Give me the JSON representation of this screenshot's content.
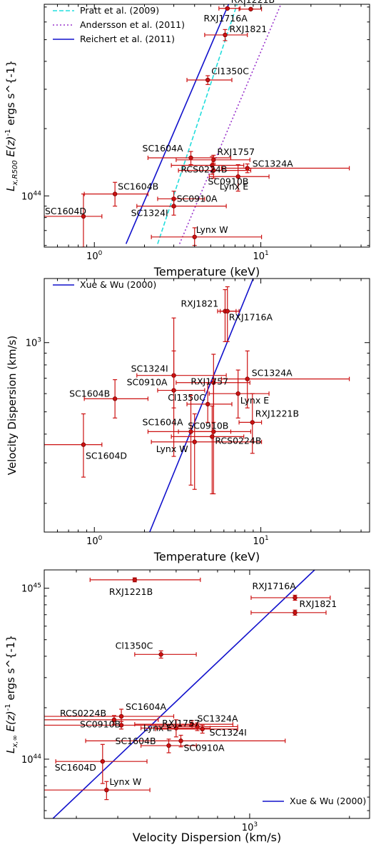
{
  "chart_data": [
    {
      "type": "scatter",
      "xscale": "log",
      "yscale": "log",
      "xlim": [
        0.5,
        45
      ],
      "ylim": [
        5.9e+43,
        7.2e+44
      ],
      "xlabel": "Temperature (keV)",
      "ylabel": "L_{x,R500} E(z)^{-1} ergs s^{-1}",
      "xticks": [
        {
          "v": 1,
          "label": "10^0"
        },
        {
          "v": 10,
          "label": "10^1"
        }
      ],
      "yticks": [
        {
          "v": 1e+44,
          "label": "10^44"
        }
      ],
      "legend": "top-left",
      "lines": [
        {
          "name": "Pratt et al. (2009)",
          "color": "#22dddd",
          "style": "dashed",
          "x": [
            2.4,
            7.2
          ],
          "y": [
            6.1e+43,
            7.2e+44
          ]
        },
        {
          "name": "Andersson et al. (2011)",
          "color": "#9933cc",
          "style": "dotted",
          "x": [
            3.25,
            13.2
          ],
          "y": [
            6.1e+43,
            7.2e+44
          ]
        },
        {
          "name": "Reichert et al. (2011)",
          "color": "#1111cc",
          "style": "solid",
          "x": [
            1.55,
            6.4
          ],
          "y": [
            6.1e+43,
            7.2e+44
          ]
        }
      ],
      "points": [
        {
          "label": "RXJ1221B",
          "x": 6.3,
          "y": 6.9e+44,
          "xerr": [
            5.6,
            7.5
          ],
          "yerr": [
            6.85e+44,
            6.95e+44
          ]
        },
        {
          "label": "RXJ1716A",
          "x": 8.7,
          "y": 6.85e+44,
          "xerr": [
            7.4,
            10.1
          ],
          "yerr": [
            6.8e+44,
            6.9e+44
          ]
        },
        {
          "label": "RXJ1821",
          "x": 6.1,
          "y": 5.25e+44,
          "xerr": [
            4.6,
            8.3
          ],
          "yerr": [
            4.95e+44,
            5.55e+44
          ]
        },
        {
          "label": "Cl1350C",
          "x": 4.8,
          "y": 3.3e+44,
          "xerr": [
            3.6,
            6.7
          ],
          "yerr": [
            3.15e+44,
            3.45e+44
          ]
        },
        {
          "label": "SC1604A",
          "x": 3.8,
          "y": 1.48e+44,
          "xerr": [
            2.1,
            6.6
          ],
          "yerr": [
            1.38e+44,
            1.58e+44
          ]
        },
        {
          "label": "RXJ1757",
          "x": 5.2,
          "y": 1.45e+44,
          "xerr": [
            3.1,
            8.6
          ],
          "yerr": [
            1.38e+44,
            1.52e+44
          ]
        },
        {
          "label": "RCS0224B",
          "x": 5.1,
          "y": 1.37e+44,
          "xerr": [
            2.9,
            7.9
          ],
          "yerr": [
            1.25e+44,
            1.5e+44
          ]
        },
        {
          "label": "SC1324A",
          "x": 8.3,
          "y": 1.33e+44,
          "xerr": [
            5.8,
            34
          ],
          "yerr": [
            1.27e+44,
            1.39e+44
          ]
        },
        {
          "label": "SC0910B",
          "x": 5.2,
          "y": 1.3e+44,
          "xerr": [
            3.2,
            8.7
          ],
          "yerr": [
            1.2e+44,
            1.4e+44
          ]
        },
        {
          "label": "Lynx E",
          "x": 7.3,
          "y": 1.22e+44,
          "xerr": [
            4.9,
            11.2
          ],
          "yerr": [
            1.05e+44,
            1.38e+44
          ]
        },
        {
          "label": "SC1604B",
          "x": 1.33,
          "y": 1.02e+44,
          "xerr": [
            0.87,
            2.1
          ],
          "yerr": [
            9e+43,
            1.15e+44
          ]
        },
        {
          "label": "SC0910A",
          "x": 3.0,
          "y": 9.7e+43,
          "xerr": [
            2.4,
            4.6
          ],
          "yerr": [
            8.9e+43,
            1.05e+44
          ]
        },
        {
          "label": "SC1324I",
          "x": 3.0,
          "y": 9e+43,
          "xerr": [
            1.8,
            6.2
          ],
          "yerr": [
            8.2e+43,
            9.8e+43
          ]
        },
        {
          "label": "SC1604D",
          "x": 0.86,
          "y": 8.1e+43,
          "xerr": [
            0.5,
            1.11
          ],
          "yerr": [
            5.9e+43,
            1.02e+44
          ]
        },
        {
          "label": "Lynx W",
          "x": 4.0,
          "y": 6.55e+43,
          "xerr": [
            2.2,
            10.1
          ],
          "yerr": [
            6e+43,
            7.2e+43
          ]
        }
      ]
    },
    {
      "type": "scatter",
      "xscale": "log",
      "yscale": "log",
      "xlim": [
        0.5,
        45
      ],
      "ylim": [
        150,
        1900
      ],
      "xlabel": "Temperature (keV)",
      "ylabel": "Velocity Dispersion (km/s)",
      "xticks": [
        {
          "v": 1,
          "label": "10^0"
        },
        {
          "v": 10,
          "label": "10^1"
        }
      ],
      "yticks": [
        {
          "v": 1000,
          "label": "10^3"
        }
      ],
      "legend": "top-left",
      "lines": [
        {
          "name": "Xue & Wu (2000)",
          "color": "#1111cc",
          "style": "solid",
          "x": [
            2.15,
            9.0
          ],
          "y": [
            150,
            1900
          ]
        }
      ],
      "points": [
        {
          "label": "RXJ1821",
          "x": 6.1,
          "y": 1370,
          "xerr": [
            5.5,
            7.1
          ],
          "yerr": [
            1010,
            1700
          ]
        },
        {
          "label": "RXJ1716A",
          "x": 6.3,
          "y": 1370,
          "xerr": [
            5.7,
            7.4
          ],
          "yerr": [
            1010,
            1750
          ]
        },
        {
          "label": "SC1324A",
          "x": 8.3,
          "y": 695,
          "xerr": [
            5.8,
            34
          ],
          "yerr": [
            520,
            920
          ]
        },
        {
          "label": "SC1324I",
          "x": 3.0,
          "y": 720,
          "xerr": [
            1.8,
            6.2
          ],
          "yerr": [
            520,
            920
          ]
        },
        {
          "label": "RXJ1757",
          "x": 5.2,
          "y": 670,
          "xerr": [
            3.1,
            8.6
          ],
          "yerr": [
            450,
            890
          ]
        },
        {
          "label": "SC0910A",
          "x": 3.0,
          "y": 620,
          "xerr": [
            2.4,
            4.6
          ],
          "yerr": [
            320,
            1280
          ]
        },
        {
          "label": "Lynx E",
          "x": 7.3,
          "y": 600,
          "xerr": [
            4.9,
            11.2
          ],
          "yerr": [
            470,
            760
          ]
        },
        {
          "label": "SC1604B",
          "x": 1.33,
          "y": 570,
          "xerr": [
            0.87,
            2.1
          ],
          "yerr": [
            470,
            690
          ]
        },
        {
          "label": "Cl1350C",
          "x": 4.8,
          "y": 540,
          "xerr": [
            3.6,
            6.7
          ],
          "yerr": [
            450,
            670
          ]
        },
        {
          "label": "RXJ1221B",
          "x": 8.9,
          "y": 450,
          "xerr": [
            7.4,
            10.1
          ],
          "yerr": [
            330,
            600
          ]
        },
        {
          "label": "SC1604A",
          "x": 3.8,
          "y": 410,
          "xerr": [
            2.1,
            6.6
          ],
          "yerr": [
            240,
            590
          ]
        },
        {
          "label": "SC0910B",
          "x": 5.2,
          "y": 410,
          "xerr": [
            3.2,
            8.7
          ],
          "yerr": [
            220,
            690
          ]
        },
        {
          "label": "RCS0224B",
          "x": 5.1,
          "y": 390,
          "xerr": [
            2.9,
            7.9
          ],
          "yerr": [
            220,
            530
          ]
        },
        {
          "label": "Lynx W",
          "x": 4.0,
          "y": 370,
          "xerr": [
            2.2,
            10.1
          ],
          "yerr": [
            230,
            490
          ]
        },
        {
          "label": "SC1604D",
          "x": 0.86,
          "y": 360,
          "xerr": [
            0.5,
            1.11
          ],
          "yerr": [
            260,
            490
          ]
        }
      ]
    },
    {
      "type": "scatter",
      "xscale": "log",
      "yscale": "log",
      "xlim": [
        240,
        2300
      ],
      "ylim": [
        4.5e+43,
        1.28e+45
      ],
      "xlabel": "Velocity Dispersion (km/s)",
      "ylabel": "L_{x,∞} E(z)^{-1} ergs s^{-1}",
      "xticks": [
        {
          "v": 1000,
          "label": "10^3"
        }
      ],
      "yticks": [
        {
          "v": 1e+44,
          "label": "10^44"
        },
        {
          "v": 1e+45,
          "label": "10^45"
        }
      ],
      "legend": "bottom-right",
      "lines": [
        {
          "name": "Xue & Wu (2000)",
          "color": "#1111cc",
          "style": "solid",
          "x": [
            255,
            1570
          ],
          "y": [
            4.5e+43,
            1.28e+45
          ]
        }
      ],
      "points": [
        {
          "label": "RXJ1221B",
          "x": 450,
          "y": 1.12e+45,
          "xerr": [
            330,
            710
          ],
          "yerr": [
            1.09e+45,
            1.15e+45
          ]
        },
        {
          "label": "RXJ1716A",
          "x": 1370,
          "y": 8.8e+44,
          "xerr": [
            1010,
            1750
          ],
          "yerr": [
            8.5e+44,
            9.1e+44
          ]
        },
        {
          "label": "RXJ1821",
          "x": 1370,
          "y": 7.2e+44,
          "xerr": [
            1010,
            1700
          ],
          "yerr": [
            6.95e+44,
            7.45e+44
          ]
        },
        {
          "label": "Cl1350C",
          "x": 540,
          "y": 4.1e+44,
          "xerr": [
            450,
            690
          ],
          "yerr": [
            3.9e+44,
            4.3e+44
          ]
        },
        {
          "label": "RCS0224B",
          "x": 390,
          "y": 1.7e+44,
          "xerr": [
            220,
            530
          ],
          "yerr": [
            1.6e+44,
            1.8e+44
          ]
        },
        {
          "label": "SC1604A",
          "x": 410,
          "y": 1.78e+44,
          "xerr": [
            240,
            590
          ],
          "yerr": [
            1.6e+44,
            1.96e+44
          ]
        },
        {
          "label": "RXJ1757",
          "x": 670,
          "y": 1.6e+44,
          "xerr": [
            450,
            890
          ],
          "yerr": [
            1.52e+44,
            1.68e+44
          ]
        },
        {
          "label": "SC1324A",
          "x": 695,
          "y": 1.55e+44,
          "xerr": [
            520,
            920
          ],
          "yerr": [
            1.47e+44,
            1.63e+44
          ]
        },
        {
          "label": "Lynx E",
          "x": 600,
          "y": 1.52e+44,
          "xerr": [
            470,
            760
          ],
          "yerr": [
            1.35e+44,
            1.7e+44
          ]
        },
        {
          "label": "SC0910B",
          "x": 410,
          "y": 1.58e+44,
          "xerr": [
            220,
            690
          ],
          "yerr": [
            1.5e+44,
            1.66e+44
          ]
        },
        {
          "label": "SC1324I",
          "x": 720,
          "y": 1.5e+44,
          "xerr": [
            520,
            920
          ],
          "yerr": [
            1.42e+44,
            1.58e+44
          ]
        },
        {
          "label": "SC0910A",
          "x": 620,
          "y": 1.28e+44,
          "xerr": [
            320,
            1280
          ],
          "yerr": [
            1.18e+44,
            1.38e+44
          ]
        },
        {
          "label": "SC1604B",
          "x": 570,
          "y": 1.2e+44,
          "xerr": [
            470,
            690
          ],
          "yerr": [
            1.09e+44,
            1.31e+44
          ]
        },
        {
          "label": "SC1604D",
          "x": 360,
          "y": 9.7e+43,
          "xerr": [
            260,
            490
          ],
          "yerr": [
            7.2e+43,
            1.22e+44
          ]
        },
        {
          "label": "Lynx W",
          "x": 370,
          "y": 6.6e+43,
          "xerr": [
            230,
            500
          ],
          "yerr": [
            5.8e+43,
            7.4e+43
          ]
        }
      ]
    }
  ]
}
